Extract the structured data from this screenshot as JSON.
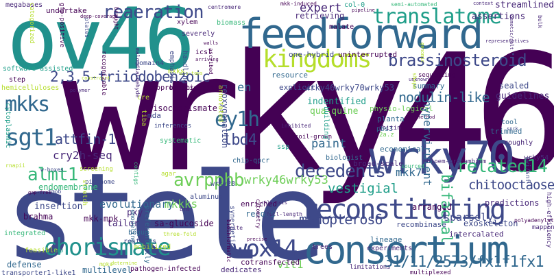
{
  "words": [
    {
      "text": "wrky46",
      "color": "#440154"
    },
    {
      "text": "stele",
      "color": "#3e4989"
    },
    {
      "text": "ov46",
      "color": "#21918c"
    },
    {
      "text": "feedforward",
      "color": "#31688e"
    },
    {
      "text": "consortium",
      "color": "#31688e"
    },
    {
      "text": "wrky70",
      "color": "#3e4989"
    },
    {
      "text": "reconstituting",
      "color": "#3e4989"
    },
    {
      "text": "chorismate",
      "color": "#21918c"
    },
    {
      "text": "wox14",
      "color": "#3e4989"
    },
    {
      "text": "kingdoms",
      "color": "#b5de2b"
    },
    {
      "text": "translatome",
      "color": "#1f9e89"
    },
    {
      "text": "reaeration",
      "color": "#3e4989"
    },
    {
      "text": "brassinosteroid",
      "color": "#3e4989"
    },
    {
      "text": "2,3,5-triiodobenzoic",
      "color": "#3e4989"
    },
    {
      "text": "sgt1",
      "color": "#31688e"
    },
    {
      "text": "mkks",
      "color": "#31688e"
    },
    {
      "text": "ey1h",
      "color": "#31688e"
    },
    {
      "text": "almt1",
      "color": "#35b779"
    },
    {
      "text": "avrpphb",
      "color": "#6ece58"
    },
    {
      "text": "decedents",
      "color": "#3e4989"
    },
    {
      "text": "related14",
      "color": "#35b779"
    },
    {
      "text": "monopteros6",
      "color": "#3e4989"
    },
    {
      "text": "31/11/2573/fx1f1fx1",
      "color": "#31688e"
    },
    {
      "text": "nodulin-like",
      "color": "#31688e"
    },
    {
      "text": "lbd4",
      "color": "#3e4989"
    },
    {
      "text": "attfin-1",
      "color": "#3e4989"
    },
    {
      "text": "cry2h-seq",
      "color": "#482878"
    },
    {
      "text": "wrky46wrky53",
      "color": "#6ece58"
    },
    {
      "text": "chitooctaose",
      "color": "#3e4989"
    },
    {
      "text": "vestigial",
      "color": "#1f9e89"
    },
    {
      "text": "mkk7",
      "color": "#31688e"
    },
    {
      "text": "paint",
      "color": "#31688e"
    },
    {
      "text": "mkkks",
      "color": "#6ece58"
    },
    {
      "text": "evolutionary",
      "color": "#31688e"
    },
    {
      "text": "sparsely",
      "color": "#3e4989"
    },
    {
      "text": "bifacial",
      "color": "#35b779"
    },
    {
      "text": "hypervirulent",
      "color": "#31688e"
    },
    {
      "text": "expert",
      "color": "#482878"
    },
    {
      "text": "wrky46wrky70wrky53",
      "color": "#3e4989"
    },
    {
      "text": "reoxygenation",
      "color": "#3e4989"
    },
    {
      "text": "indentified",
      "color": "#1f9e89"
    },
    {
      "text": "qua-quine",
      "color": "#6ece58"
    },
    {
      "text": "streamlined",
      "color": "#482878"
    },
    {
      "text": "assertions",
      "color": "#482878"
    },
    {
      "text": "one-hybrid",
      "color": "#3e4989"
    },
    {
      "text": "uninterrupted",
      "color": "#440154"
    },
    {
      "text": "retrieving",
      "color": "#482878"
    },
    {
      "text": "explicit",
      "color": "#3e4989"
    },
    {
      "text": "resource",
      "color": "#31688e"
    },
    {
      "text": "summary",
      "color": "#31688e"
    },
    {
      "text": "guidelines",
      "color": "#482878"
    },
    {
      "text": "sealed",
      "color": "#3e4989"
    },
    {
      "text": "tool",
      "color": "#31688e"
    },
    {
      "text": "trimmed",
      "color": "#31688e"
    },
    {
      "text": "planta",
      "color": "#31688e"
    },
    {
      "text": "pbs3",
      "color": "#31688e"
    },
    {
      "text": "pxy",
      "color": "#482878"
    },
    {
      "text": "tailor",
      "color": "#482878"
    },
    {
      "text": "sa-glucoside",
      "color": "#440154"
    },
    {
      "text": "record",
      "color": "#31688e"
    },
    {
      "text": "insertion",
      "color": "#3e4989"
    },
    {
      "text": "brahma",
      "color": "#440154"
    },
    {
      "text": "mkk-mpk",
      "color": "#440154"
    },
    {
      "text": "recombinase",
      "color": "#3e4989"
    },
    {
      "text": "exoskeleton",
      "color": "#3e4989"
    },
    {
      "text": "intercalated",
      "color": "#482878"
    },
    {
      "text": "predictions",
      "color": "#482878"
    },
    {
      "text": "arranged",
      "color": "#440154"
    },
    {
      "text": "vit1",
      "color": "#6ece58"
    },
    {
      "text": "defense",
      "color": "#31688e"
    },
    {
      "text": "cotransfected",
      "color": "#440154"
    },
    {
      "text": "multilevel",
      "color": "#31688e"
    },
    {
      "text": "pathogen-infected",
      "color": "#440154"
    },
    {
      "text": "dedicates",
      "color": "#482878"
    },
    {
      "text": "transporter1-like1",
      "color": "#3e4989"
    },
    {
      "text": "isochorismate",
      "color": "#440154"
    },
    {
      "text": "br-insensitive2",
      "color": "#440154"
    },
    {
      "text": "osmoprotection",
      "color": "#440154"
    },
    {
      "text": "chip-qpcr",
      "color": "#31688e"
    },
    {
      "text": "mda",
      "color": "#3e4989"
    },
    {
      "text": "en",
      "color": "#31688e"
    },
    {
      "text": "lineage",
      "color": "#31688e"
    },
    {
      "text": "economical",
      "color": "#31688e"
    },
    {
      "text": "broad-scale",
      "color": "#482878"
    },
    {
      "text": "biologist",
      "color": "#31688e"
    },
    {
      "text": "ssp",
      "color": "#1f9e89"
    },
    {
      "text": "wrky28",
      "color": "#3e4989"
    },
    {
      "text": "enriched",
      "color": "#440154"
    },
    {
      "text": "mkk-induced",
      "color": "#440154"
    },
    {
      "text": "col-0",
      "color": "#1f9e89"
    },
    {
      "text": "malate",
      "color": "#440154"
    },
    {
      "text": "undertake",
      "color": "#440154"
    },
    {
      "text": "megabases",
      "color": "#482878"
    },
    {
      "text": "biomass",
      "color": "#35b779"
    },
    {
      "text": "xylem",
      "color": "#440154"
    },
    {
      "text": "severely",
      "color": "#482878"
    },
    {
      "text": "context",
      "color": "#482878"
    },
    {
      "text": "domain4",
      "color": "#3e4989"
    },
    {
      "text": "step",
      "color": "#440154"
    },
    {
      "text": "mkks",
      "color": "#b5de2b"
    },
    {
      "text": "icsl",
      "color": "#440154"
    },
    {
      "text": "cre",
      "color": "#b5de2b"
    },
    {
      "text": "tiba",
      "color": "#b5de2b"
    },
    {
      "text": "annotated",
      "color": "#b5de2b"
    },
    {
      "text": "begun",
      "color": "#31688e"
    },
    {
      "text": "mobilized",
      "color": "#b5de2b"
    },
    {
      "text": "feasible",
      "color": "#b5de2b"
    },
    {
      "text": "integrated",
      "color": "#35b779"
    },
    {
      "text": "remodeling",
      "color": "#31688e"
    },
    {
      "text": "preferentially",
      "color": "#31688e"
    },
    {
      "text": "polymer",
      "color": "#482878"
    },
    {
      "text": "emphasis",
      "color": "#3e4989"
    },
    {
      "text": "handling",
      "color": "#3e4989"
    },
    {
      "text": "recognizable",
      "color": "#440154"
    },
    {
      "text": "inferences",
      "color": "#440154"
    },
    {
      "text": "systematic",
      "color": "#3e4989"
    },
    {
      "text": "synergetic",
      "color": "#35b779"
    },
    {
      "text": "aluminum",
      "color": "#3e4989"
    },
    {
      "text": "trees",
      "color": "#3e4989"
    },
    {
      "text": "experiments",
      "color": "#482878"
    },
    {
      "text": "multiplexed",
      "color": "#482878"
    },
    {
      "text": "phloem-procambium",
      "color": "#440154"
    },
    {
      "text": "roughly",
      "color": "#482878"
    },
    {
      "text": "wrky54",
      "color": "#482878"
    },
    {
      "text": "mapping",
      "color": "#482878"
    },
    {
      "text": "building",
      "color": "#482878"
    },
    {
      "text": "physio-logical",
      "color": "#1f9e89"
    },
    {
      "text": "2a.z",
      "color": "#6ece58"
    },
    {
      "text": "chitin",
      "color": "#6ece58"
    },
    {
      "text": "shape",
      "color": "#482878"
    },
    {
      "text": "sequencing",
      "color": "#b5de2b"
    },
    {
      "text": "pigenome",
      "color": "#440154"
    },
    {
      "text": "w-boxes",
      "color": "#3e4989"
    },
    {
      "text": "endomembrane",
      "color": "#3e4989"
    },
    {
      "text": "tmob",
      "color": "#35b779"
    },
    {
      "text": "cytoplasmic",
      "color": "#3e4989"
    },
    {
      "text": "software-assisted",
      "color": "#1f9e89"
    },
    {
      "text": "hemicelluloses",
      "color": "#1f9e89"
    },
    {
      "text": "rnapii",
      "color": "#b5de2b"
    },
    {
      "text": "screening",
      "color": "#b5de2b"
    },
    {
      "text": "stretch",
      "color": "#b5de2b"
    },
    {
      "text": "agar",
      "color": "#b5de2b"
    },
    {
      "text": "soil-grown",
      "color": "#b5de2b"
    },
    {
      "text": "inhibited",
      "color": "#440154"
    },
    {
      "text": "brm",
      "color": "#482878"
    },
    {
      "text": "restores",
      "color": "#482878"
    },
    {
      "text": "lrp",
      "color": "#3e4989"
    },
    {
      "text": "three-fold",
      "color": "#1f9e89"
    },
    {
      "text": "spite",
      "color": "#b5de2b"
    },
    {
      "text": "precise",
      "color": "#482878"
    },
    {
      "text": "limitations",
      "color": "#440154"
    },
    {
      "text": "polyadenylated",
      "color": "#482878"
    },
    {
      "text": "swi/snf",
      "color": "#440154"
    },
    {
      "text": "high-efficiency",
      "color": "#3e4989"
    },
    {
      "text": "semi-automated",
      "color": "#482878"
    },
    {
      "text": "deep-coverage",
      "color": "#35b779"
    },
    {
      "text": "brought",
      "color": "#440154"
    },
    {
      "text": "categorized",
      "color": "#440154"
    },
    {
      "text": "gfp-positive",
      "color": "#b5de2b"
    },
    {
      "text": "malondialdehyde",
      "color": "#440154"
    },
    {
      "text": "centromere",
      "color": "#482878"
    },
    {
      "text": "walls",
      "color": "#b5de2b"
    },
    {
      "text": "ascribed",
      "color": "#482878"
    },
    {
      "text": "pipeline",
      "color": "#440154"
    },
    {
      "text": "osmotic/salt",
      "color": "#440154"
    },
    {
      "text": "unknown",
      "color": "#440154"
    },
    {
      "text": "snrk",
      "color": "#482878"
    },
    {
      "text": "chlorosis",
      "color": "#482878"
    },
    {
      "text": "cytometry",
      "color": "#3e4989"
    },
    {
      "text": "full-length",
      "color": "#482878"
    },
    {
      "text": "bioinformatic",
      "color": "#440154"
    },
    {
      "text": "determine",
      "color": "#482878"
    },
    {
      "text": "method",
      "color": "#440154"
    },
    {
      "text": "sourced",
      "color": "#b5de2b"
    },
    {
      "text": "cis-tops",
      "color": "#440154"
    },
    {
      "text": "genomic",
      "color": "#35b779"
    },
    {
      "text": "mpks",
      "color": "#b5de2b"
    },
    {
      "text": "plates",
      "color": "#3e4989"
    },
    {
      "text": "arriving",
      "color": "#b5de2b"
    },
    {
      "text": "constraint",
      "color": "#b5de2b"
    },
    {
      "text": "contigs",
      "color": "#440154"
    },
    {
      "text": "bulk",
      "color": "#b5de2b"
    },
    {
      "text": "representatives",
      "color": "#3e4989"
    },
    {
      "text": "gap-free",
      "color": "#35b779"
    },
    {
      "text": "mir319",
      "color": "#482878"
    },
    {
      "text": "encompassing",
      "color": "#440154"
    }
  ]
}
